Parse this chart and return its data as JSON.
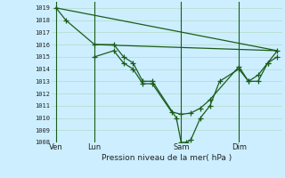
{
  "background_color": "#cceeff",
  "grid_color": "#b8ddd0",
  "line_color": "#1a5c1a",
  "title": "Pression niveau de la mer( hPa )",
  "ylim": [
    1008,
    1019.5
  ],
  "xlim": [
    0,
    24
  ],
  "yticks": [
    1008,
    1009,
    1010,
    1011,
    1012,
    1013,
    1014,
    1015,
    1016,
    1017,
    1018,
    1019
  ],
  "day_labels": [
    "Ven",
    "Lun",
    "Sam",
    "Dim"
  ],
  "day_positions": [
    0.5,
    4.5,
    13.5,
    19.5
  ],
  "day_vlines": [
    0.5,
    4.5,
    13.5,
    19.5
  ],
  "series1": {
    "x": [
      0.5,
      1.5,
      4.5,
      6.5,
      7.5,
      8.5,
      9.5,
      10.5,
      13.0,
      13.5,
      14.0,
      14.5,
      15.5,
      16.5,
      17.5,
      19.5,
      20.5,
      21.5,
      22.5,
      23.5
    ],
    "y": [
      1019,
      1018,
      1016,
      1016,
      1015,
      1014.5,
      1013,
      1013,
      1010,
      1008,
      1008,
      1008.2,
      1010,
      1011,
      1013,
      1014,
      1013,
      1013,
      1014.5,
      1015.5
    ]
  },
  "series2": {
    "x": [
      4.5,
      6.5,
      7.5,
      8.5,
      9.5,
      10.5,
      12.5,
      13.5,
      14.5,
      15.5,
      16.5,
      19.5,
      20.5,
      21.5,
      22.5,
      23.5
    ],
    "y": [
      1015,
      1015.5,
      1014.5,
      1014,
      1012.8,
      1012.8,
      1010.5,
      1010.3,
      1010.4,
      1010.8,
      1011.5,
      1014.2,
      1013,
      1013.5,
      1014.5,
      1015
    ]
  },
  "series3_straight": {
    "x": [
      0.5,
      23.5
    ],
    "y": [
      1019,
      1015.5
    ]
  },
  "series4_straight": {
    "x": [
      4.5,
      23.5
    ],
    "y": [
      1016,
      1015.5
    ]
  }
}
